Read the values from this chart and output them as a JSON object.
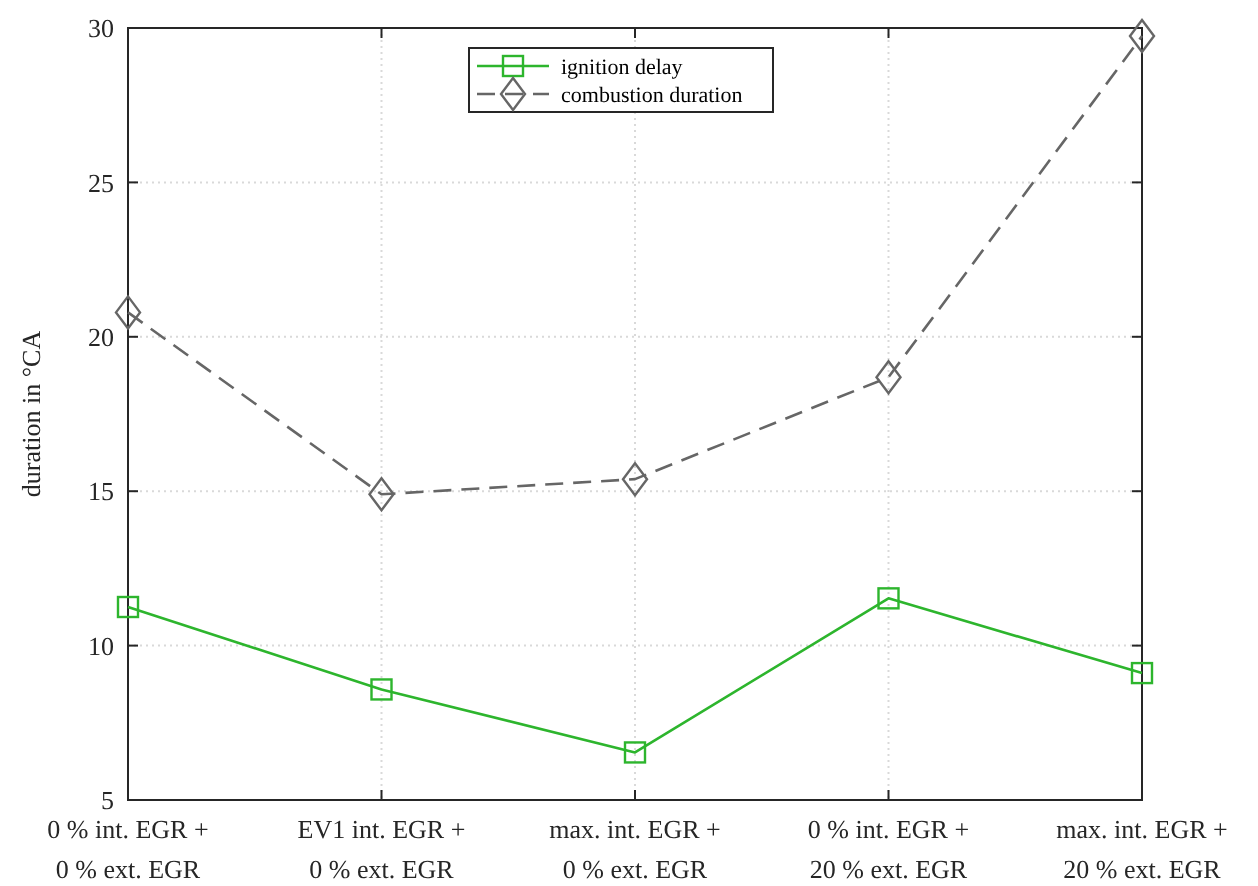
{
  "chart_data": {
    "type": "line",
    "ylabel": "duration in °CA",
    "categories": [
      "0 % int. EGR +\n0 % ext. EGR",
      "EV1 int. EGR +\n0 % ext. EGR",
      "max. int. EGR +\n0 % ext. EGR",
      "0 % int. EGR +\n20 % ext. EGR",
      "max. int. EGR +\n20 % ext. EGR"
    ],
    "series": [
      {
        "name": "ignition delay",
        "color": "#2db52d",
        "values": [
          11.25,
          8.58,
          6.54,
          11.53,
          9.11
        ],
        "marker": "square",
        "line_style": "solid"
      },
      {
        "name": "combustion duration",
        "color": "#666666",
        "values": [
          20.79,
          14.9,
          15.39,
          18.69,
          29.74
        ],
        "marker": "diamond",
        "line_style": "dashed"
      }
    ],
    "ylim": [
      5,
      30
    ],
    "yticks": [
      5,
      10,
      15,
      20,
      25,
      30
    ],
    "grid": true,
    "legend": "top"
  }
}
